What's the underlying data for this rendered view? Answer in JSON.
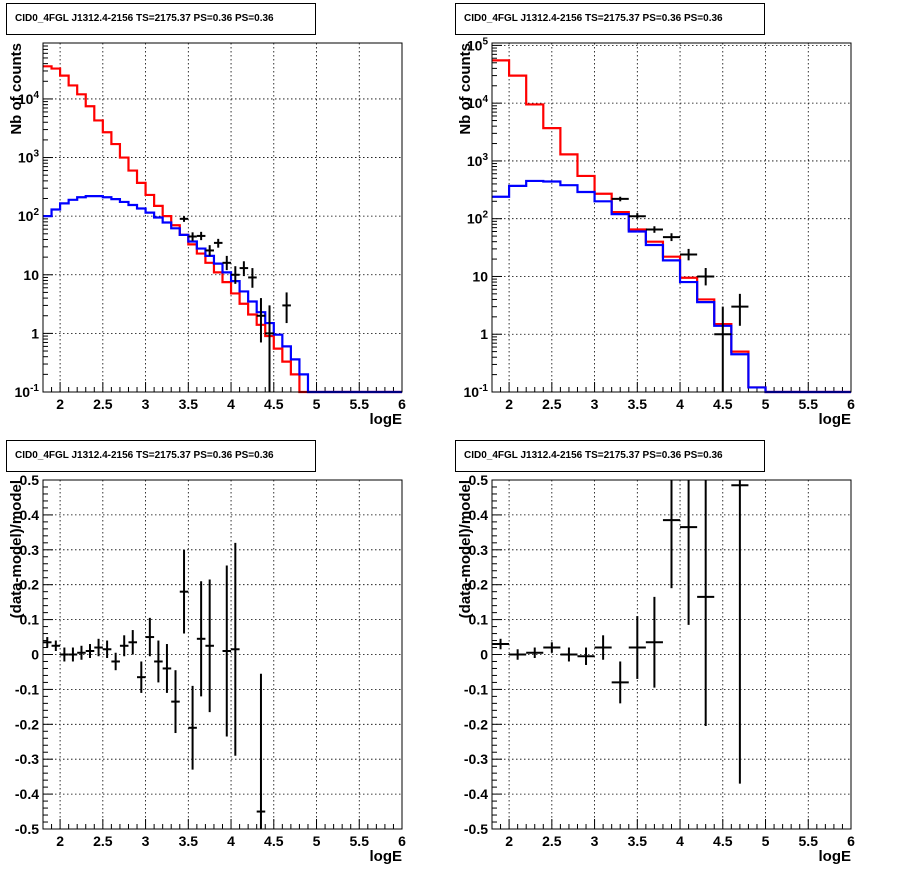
{
  "chart_data": [
    {
      "type": "step-histogram",
      "title": "CID0_4FGL J1312.4-2156 TS=2175.37 PS=0.36 PS=0.36",
      "xlabel": "logE",
      "ylabel": "Nb of counts",
      "xlim": [
        1.8,
        6.0
      ],
      "ylim": [
        0.1,
        90000
      ],
      "yscale": "log",
      "grid": true,
      "x_ticks": [
        2,
        2.5,
        3,
        3.5,
        4,
        4.5,
        5,
        5.5,
        6
      ],
      "x_tick_labels": [
        "2",
        "2.5",
        "3",
        "3.5",
        "4",
        "4.5",
        "5",
        "5.5",
        "6"
      ],
      "y_ticks": [
        0.1,
        1,
        10,
        100,
        1000,
        10000
      ],
      "y_tick_labels": [
        "10^-1",
        "1",
        "10",
        "10^2",
        "10^3",
        "10^4"
      ],
      "bin_width": 0.1,
      "bin_start": 1.8,
      "series": [
        {
          "color": "#ff0000",
          "values": [
            36000,
            33000,
            25000,
            17000,
            12000,
            7500,
            4300,
            2700,
            1700,
            1000,
            600,
            370,
            230,
            150,
            100,
            70,
            48,
            33,
            23,
            16,
            11,
            7.5,
            4.8,
            3.2,
            2.1,
            1.4,
            0.9,
            0.55,
            0.33,
            0.2,
            0.1,
            0.1,
            0.1,
            0.1,
            0.1,
            0.1,
            0.1,
            0.1,
            0.1,
            0.1,
            0.1,
            0.1
          ]
        },
        {
          "color": "#0000ff",
          "values": [
            100,
            130,
            165,
            190,
            210,
            220,
            220,
            210,
            195,
            175,
            155,
            135,
            115,
            95,
            78,
            62,
            48,
            37,
            28,
            21,
            15.5,
            11,
            7.8,
            5.2,
            3.5,
            2.3,
            1.5,
            0.95,
            0.6,
            0.36,
            0.2,
            0.1,
            0.1,
            0.1,
            0.1,
            0.1,
            0.1,
            0.1,
            0.1,
            0.1,
            0.1,
            0.1
          ]
        }
      ],
      "points": [
        {
          "x": 3.45,
          "y": 90,
          "ylo": 80,
          "yhi": 100
        },
        {
          "x": 3.55,
          "y": 45,
          "ylo": 38,
          "yhi": 53
        },
        {
          "x": 3.65,
          "y": 46,
          "ylo": 39,
          "yhi": 54
        },
        {
          "x": 3.75,
          "y": 26,
          "ylo": 21,
          "yhi": 32
        },
        {
          "x": 3.85,
          "y": 35,
          "ylo": 29,
          "yhi": 41
        },
        {
          "x": 3.95,
          "y": 16,
          "ylo": 12,
          "yhi": 21
        },
        {
          "x": 4.05,
          "y": 10,
          "ylo": 7,
          "yhi": 14
        },
        {
          "x": 4.15,
          "y": 13,
          "ylo": 9.5,
          "yhi": 17
        },
        {
          "x": 4.25,
          "y": 9,
          "ylo": 6,
          "yhi": 13
        },
        {
          "x": 4.35,
          "y": 2,
          "ylo": 0.7,
          "yhi": 4
        },
        {
          "x": 4.45,
          "y": 1,
          "ylo": 0.1,
          "yhi": 3
        },
        {
          "x": 4.65,
          "y": 3,
          "ylo": 1.5,
          "yhi": 5
        }
      ]
    },
    {
      "type": "step-histogram",
      "title": "CID0_4FGL J1312.4-2156 TS=2175.37 PS=0.36 PS=0.36",
      "xlabel": "logE",
      "ylabel": "Nb of counts",
      "xlim": [
        1.8,
        6.0
      ],
      "ylim": [
        0.1,
        110000
      ],
      "yscale": "log",
      "grid": true,
      "x_ticks": [
        2,
        2.5,
        3,
        3.5,
        4,
        4.5,
        5,
        5.5,
        6
      ],
      "x_tick_labels": [
        "2",
        "2.5",
        "3",
        "3.5",
        "4",
        "4.5",
        "5",
        "5.5",
        "6"
      ],
      "y_ticks": [
        0.1,
        1,
        10,
        100,
        1000,
        10000,
        100000
      ],
      "y_tick_labels": [
        "10^-1",
        "1",
        "10",
        "10^2",
        "10^3",
        "10^4",
        "10^5"
      ],
      "bin_width": 0.2,
      "bin_start": 1.8,
      "series": [
        {
          "color": "#ff0000",
          "values": [
            55000,
            30000,
            9500,
            3700,
            1300,
            550,
            270,
            130,
            65,
            40,
            22,
            9.5,
            4,
            1.5,
            0.5,
            0.12,
            0.1,
            0.1,
            0.1,
            0.1,
            0.1
          ]
        },
        {
          "color": "#0000ff",
          "values": [
            240,
            370,
            450,
            440,
            380,
            290,
            200,
            120,
            60,
            35,
            19,
            8,
            3.6,
            1.4,
            0.45,
            0.12,
            0.1,
            0.1,
            0.1,
            0.1,
            0.1
          ]
        }
      ],
      "points": [
        {
          "x": 3.3,
          "y": 220,
          "ylo": 200,
          "yhi": 240
        },
        {
          "x": 3.5,
          "y": 110,
          "ylo": 100,
          "yhi": 125
        },
        {
          "x": 3.7,
          "y": 65,
          "ylo": 57,
          "yhi": 74
        },
        {
          "x": 3.9,
          "y": 48,
          "ylo": 41,
          "yhi": 56
        },
        {
          "x": 4.1,
          "y": 24,
          "ylo": 19,
          "yhi": 30
        },
        {
          "x": 4.3,
          "y": 10,
          "ylo": 7,
          "yhi": 14
        },
        {
          "x": 4.5,
          "y": 1,
          "ylo": 0.1,
          "yhi": 3
        },
        {
          "x": 4.7,
          "y": 3,
          "ylo": 1.4,
          "yhi": 5
        }
      ]
    },
    {
      "type": "scatter-errorbars",
      "title": "CID0_4FGL J1312.4-2156 TS=2175.37 PS=0.36 PS=0.36",
      "xlabel": "logE",
      "ylabel": "(data-model)/model",
      "xlim": [
        1.8,
        6.0
      ],
      "ylim": [
        -0.5,
        0.5
      ],
      "yscale": "linear",
      "grid": true,
      "x_ticks": [
        2,
        2.5,
        3,
        3.5,
        4,
        4.5,
        5,
        5.5,
        6
      ],
      "x_tick_labels": [
        "2",
        "2.5",
        "3",
        "3.5",
        "4",
        "4.5",
        "5",
        "5.5",
        "6"
      ],
      "y_ticks": [
        -0.5,
        -0.4,
        -0.3,
        -0.2,
        -0.1,
        0,
        0.1,
        0.2,
        0.3,
        0.4,
        0.5
      ],
      "y_tick_labels": [
        "-0.5",
        "-0.4",
        "-0.3",
        "-0.2",
        "-0.1",
        "0",
        "0.1",
        "0.2",
        "0.3",
        "0.4",
        "0.5"
      ],
      "xerr": 0.05,
      "points": [
        {
          "x": 1.85,
          "y": 0.035,
          "e": 0.015
        },
        {
          "x": 1.95,
          "y": 0.025,
          "e": 0.015
        },
        {
          "x": 2.05,
          "y": 0.0,
          "e": 0.02
        },
        {
          "x": 2.15,
          "y": 0.0,
          "e": 0.02
        },
        {
          "x": 2.25,
          "y": 0.005,
          "e": 0.02
        },
        {
          "x": 2.35,
          "y": 0.01,
          "e": 0.02
        },
        {
          "x": 2.45,
          "y": 0.02,
          "e": 0.025
        },
        {
          "x": 2.55,
          "y": 0.015,
          "e": 0.025
        },
        {
          "x": 2.65,
          "y": -0.02,
          "e": 0.025
        },
        {
          "x": 2.75,
          "y": 0.025,
          "e": 0.03
        },
        {
          "x": 2.85,
          "y": 0.035,
          "e": 0.035
        },
        {
          "x": 2.95,
          "y": -0.065,
          "e": 0.045
        },
        {
          "x": 3.05,
          "y": 0.05,
          "e": 0.055
        },
        {
          "x": 3.15,
          "y": -0.02,
          "e": 0.06
        },
        {
          "x": 3.25,
          "y": -0.04,
          "e": 0.07
        },
        {
          "x": 3.35,
          "y": -0.135,
          "e": 0.09
        },
        {
          "x": 3.45,
          "y": 0.18,
          "e": 0.12
        },
        {
          "x": 3.55,
          "y": -0.21,
          "e": 0.12
        },
        {
          "x": 3.65,
          "y": 0.045,
          "e": 0.165
        },
        {
          "x": 3.75,
          "y": 0.025,
          "e": 0.19
        },
        {
          "x": 3.95,
          "y": 0.01,
          "e": 0.245
        },
        {
          "x": 4.05,
          "y": 0.015,
          "e": 0.305
        },
        {
          "x": 4.35,
          "y": -0.45,
          "e": 0.395
        }
      ]
    },
    {
      "type": "scatter-errorbars",
      "title": "CID0_4FGL J1312.4-2156 TS=2175.37 PS=0.36 PS=0.36",
      "xlabel": "logE",
      "ylabel": "(data-model)/model",
      "xlim": [
        1.8,
        6.0
      ],
      "ylim": [
        -0.5,
        0.5
      ],
      "yscale": "linear",
      "grid": true,
      "x_ticks": [
        2,
        2.5,
        3,
        3.5,
        4,
        4.5,
        5,
        5.5,
        6
      ],
      "x_tick_labels": [
        "2",
        "2.5",
        "3",
        "3.5",
        "4",
        "4.5",
        "5",
        "5.5",
        "6"
      ],
      "y_ticks": [
        -0.5,
        -0.4,
        -0.3,
        -0.2,
        -0.1,
        0,
        0.1,
        0.2,
        0.3,
        0.4,
        0.5
      ],
      "y_tick_labels": [
        "-0.5",
        "-0.4",
        "-0.3",
        "-0.2",
        "-0.1",
        "0",
        "0.1",
        "0.2",
        "0.3",
        "0.4",
        "0.5"
      ],
      "xerr": 0.1,
      "points": [
        {
          "x": 1.9,
          "y": 0.03,
          "e": 0.015
        },
        {
          "x": 2.1,
          "y": 0.0,
          "e": 0.015
        },
        {
          "x": 2.3,
          "y": 0.005,
          "e": 0.015
        },
        {
          "x": 2.5,
          "y": 0.02,
          "e": 0.015
        },
        {
          "x": 2.7,
          "y": 0.0,
          "e": 0.02
        },
        {
          "x": 2.9,
          "y": -0.005,
          "e": 0.025
        },
        {
          "x": 3.1,
          "y": 0.02,
          "e": 0.035
        },
        {
          "x": 3.3,
          "y": -0.08,
          "e": 0.06
        },
        {
          "x": 3.5,
          "y": 0.02,
          "e": 0.09
        },
        {
          "x": 3.7,
          "y": 0.035,
          "e": 0.13
        },
        {
          "x": 3.9,
          "y": 0.385,
          "e": 0.195
        },
        {
          "x": 4.1,
          "y": 0.365,
          "e": 0.28
        },
        {
          "x": 4.3,
          "y": 0.165,
          "e": 0.37
        },
        {
          "x": 4.7,
          "y": 0.485,
          "e": 0.855
        }
      ]
    }
  ]
}
